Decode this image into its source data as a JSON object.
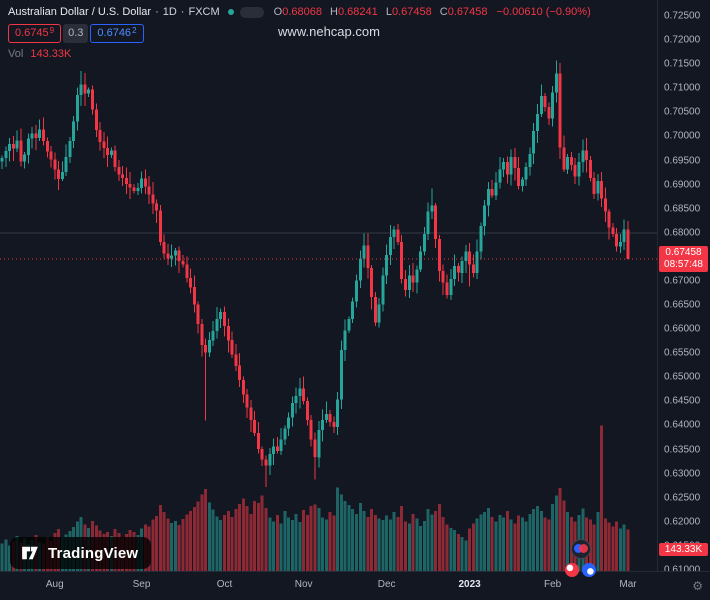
{
  "watermark": "www.nehcap.com",
  "header": {
    "symbol_title": "Australian Dollar / U.S. Dollar",
    "separator": "·",
    "interval": "1D",
    "exchange": "FXCM",
    "ohlc": {
      "o_label": "O",
      "o": "0.68068",
      "h_label": "H",
      "h": "0.68241",
      "l_label": "L",
      "l": "0.67458",
      "c_label": "C",
      "c": "0.67458",
      "change": "−0.00610 (−0.90%)"
    },
    "quote": {
      "bid_main": "0.6745",
      "bid_sup": "9",
      "spread": "0.3",
      "ask_main": "0.6746",
      "ask_sup": "2"
    },
    "volume": {
      "label": "Vol",
      "value": "143.33K"
    }
  },
  "price_scale": {
    "last_price_label": "0.67458",
    "countdown": "08:57:48",
    "volume_label": "143.33K"
  },
  "logo": {
    "text": "TradingView"
  },
  "icons": {
    "gear": "⚙"
  },
  "chart_data": {
    "type": "candlestick",
    "title": "AUD/USD daily candlestick chart with volume",
    "symbol": "AUD/USD",
    "interval": "1D",
    "exchange": "FXCM",
    "legend_position": "top-left",
    "grid": false,
    "colors": {
      "up": "#26A69A",
      "down": "#F23645",
      "flag": "#F23645"
    },
    "first_open": 0.6948,
    "last_price": 0.67458,
    "level_line": 0.68,
    "volume_scale_max": 520,
    "closes": [
      0.6955,
      0.697,
      0.6984,
      0.6975,
      0.6992,
      0.6948,
      0.6962,
      0.6996,
      0.7006,
      0.6997,
      0.7014,
      0.6991,
      0.6969,
      0.6952,
      0.6931,
      0.6912,
      0.6926,
      0.6957,
      0.6991,
      0.7031,
      0.7086,
      0.7108,
      0.7089,
      0.7097,
      0.7056,
      0.7013,
      0.6989,
      0.6976,
      0.6961,
      0.6971,
      0.6937,
      0.6921,
      0.6914,
      0.6901,
      0.6894,
      0.6887,
      0.6893,
      0.6913,
      0.6896,
      0.6879,
      0.6861,
      0.6846,
      0.6781,
      0.6757,
      0.6747,
      0.6753,
      0.6763,
      0.6741,
      0.6734,
      0.6706,
      0.6687,
      0.6651,
      0.6611,
      0.6567,
      0.6551,
      0.6577,
      0.6596,
      0.6621,
      0.6636,
      0.6607,
      0.6577,
      0.6547,
      0.6524,
      0.6494,
      0.6464,
      0.6437,
      0.6411,
      0.6384,
      0.6351,
      0.6329,
      0.6317,
      0.6341,
      0.6356,
      0.6347,
      0.6371,
      0.6394,
      0.6417,
      0.6447,
      0.6461,
      0.6477,
      0.6451,
      0.6411,
      0.6371,
      0.6334,
      0.6391,
      0.6411,
      0.6424,
      0.6407,
      0.6397,
      0.6454,
      0.6557,
      0.6597,
      0.6621,
      0.6657,
      0.6701,
      0.6747,
      0.6774,
      0.6727,
      0.6667,
      0.6614,
      0.6651,
      0.6711,
      0.6754,
      0.6791,
      0.6807,
      0.6781,
      0.6704,
      0.6681,
      0.6711,
      0.6697,
      0.6724,
      0.6761,
      0.6797,
      0.6844,
      0.6857,
      0.6787,
      0.6721,
      0.6697,
      0.6671,
      0.6704,
      0.6731,
      0.6717,
      0.6741,
      0.6761,
      0.6734,
      0.6717,
      0.6761,
      0.6814,
      0.6857,
      0.6891,
      0.6877,
      0.6904,
      0.6931,
      0.6947,
      0.6921,
      0.6957,
      0.6934,
      0.6897,
      0.6911,
      0.6937,
      0.6964,
      0.7011,
      0.7047,
      0.7084,
      0.7061,
      0.7037,
      0.7091,
      0.7131,
      0.6977,
      0.6931,
      0.6957,
      0.6941,
      0.6917,
      0.6947,
      0.6971,
      0.6951,
      0.6914,
      0.6881,
      0.6907,
      0.6871,
      0.6844,
      0.6811,
      0.6797,
      0.6771,
      0.6781,
      0.68068,
      0.67458
    ],
    "volumes": [
      95,
      110,
      88,
      102,
      121,
      98,
      115,
      92,
      108,
      125,
      101,
      96,
      118,
      104,
      132,
      145,
      118,
      126,
      139,
      152,
      171,
      188,
      162,
      149,
      174,
      158,
      141,
      129,
      135,
      122,
      146,
      131,
      117,
      128,
      142,
      136,
      124,
      148,
      162,
      155,
      178,
      191,
      228,
      205,
      182,
      167,
      173,
      159,
      181,
      196,
      208,
      222,
      241,
      265,
      285,
      238,
      214,
      189,
      176,
      195,
      208,
      188,
      215,
      232,
      252,
      226,
      198,
      242,
      235,
      262,
      218,
      186,
      172,
      194,
      165,
      208,
      185,
      176,
      198,
      170,
      212,
      195,
      225,
      230,
      218,
      186,
      178,
      205,
      192,
      290,
      265,
      242,
      228,
      215,
      198,
      235,
      208,
      188,
      215,
      195,
      182,
      176,
      192,
      178,
      205,
      188,
      225,
      172,
      165,
      198,
      182,
      156,
      174,
      215,
      196,
      208,
      232,
      188,
      162,
      149,
      142,
      128,
      118,
      105,
      148,
      165,
      182,
      196,
      205,
      218,
      188,
      172,
      195,
      186,
      208,
      178,
      165,
      192,
      185,
      172,
      198,
      215,
      226,
      208,
      186,
      178,
      232,
      262,
      288,
      245,
      205,
      188,
      172,
      195,
      216,
      185,
      178,
      162,
      205,
      505,
      182,
      168,
      155,
      172,
      148,
      162,
      143.33
    ],
    "overrides": {
      "21": {
        "h": 0.7136
      },
      "54": {
        "l": 0.641
      },
      "70": {
        "l": 0.6272
      },
      "83": {
        "l": 0.6288
      },
      "96": {
        "h": 0.6798
      },
      "114": {
        "h": 0.6892
      },
      "124": {
        "l": 0.6688
      },
      "147": {
        "h": 0.7158
      },
      "166": {
        "o": 0.68068,
        "h": 0.68241,
        "l": 0.67458,
        "c": 0.67458
      }
    },
    "y_axis": {
      "min": 0.61,
      "max": 0.725,
      "ticks": [
        "0.72500",
        "0.72000",
        "0.71500",
        "0.71000",
        "0.70500",
        "0.70000",
        "0.69500",
        "0.69000",
        "0.68500",
        "0.68000",
        "0.67500",
        "0.67000",
        "0.66500",
        "0.66000",
        "0.65500",
        "0.65000",
        "0.64500",
        "0.64000",
        "0.63500",
        "0.63000",
        "0.62500",
        "0.62000",
        "0.61500",
        "0.61000"
      ]
    },
    "x_axis": {
      "ticks": [
        {
          "label": "Aug",
          "index": 14
        },
        {
          "label": "Sep",
          "index": 37
        },
        {
          "label": "Oct",
          "index": 59
        },
        {
          "label": "Nov",
          "index": 80
        },
        {
          "label": "Dec",
          "index": 102
        },
        {
          "label": "2023",
          "index": 124,
          "em": true
        },
        {
          "label": "Feb",
          "index": 146
        },
        {
          "label": "Mar",
          "index": 166
        }
      ]
    }
  }
}
